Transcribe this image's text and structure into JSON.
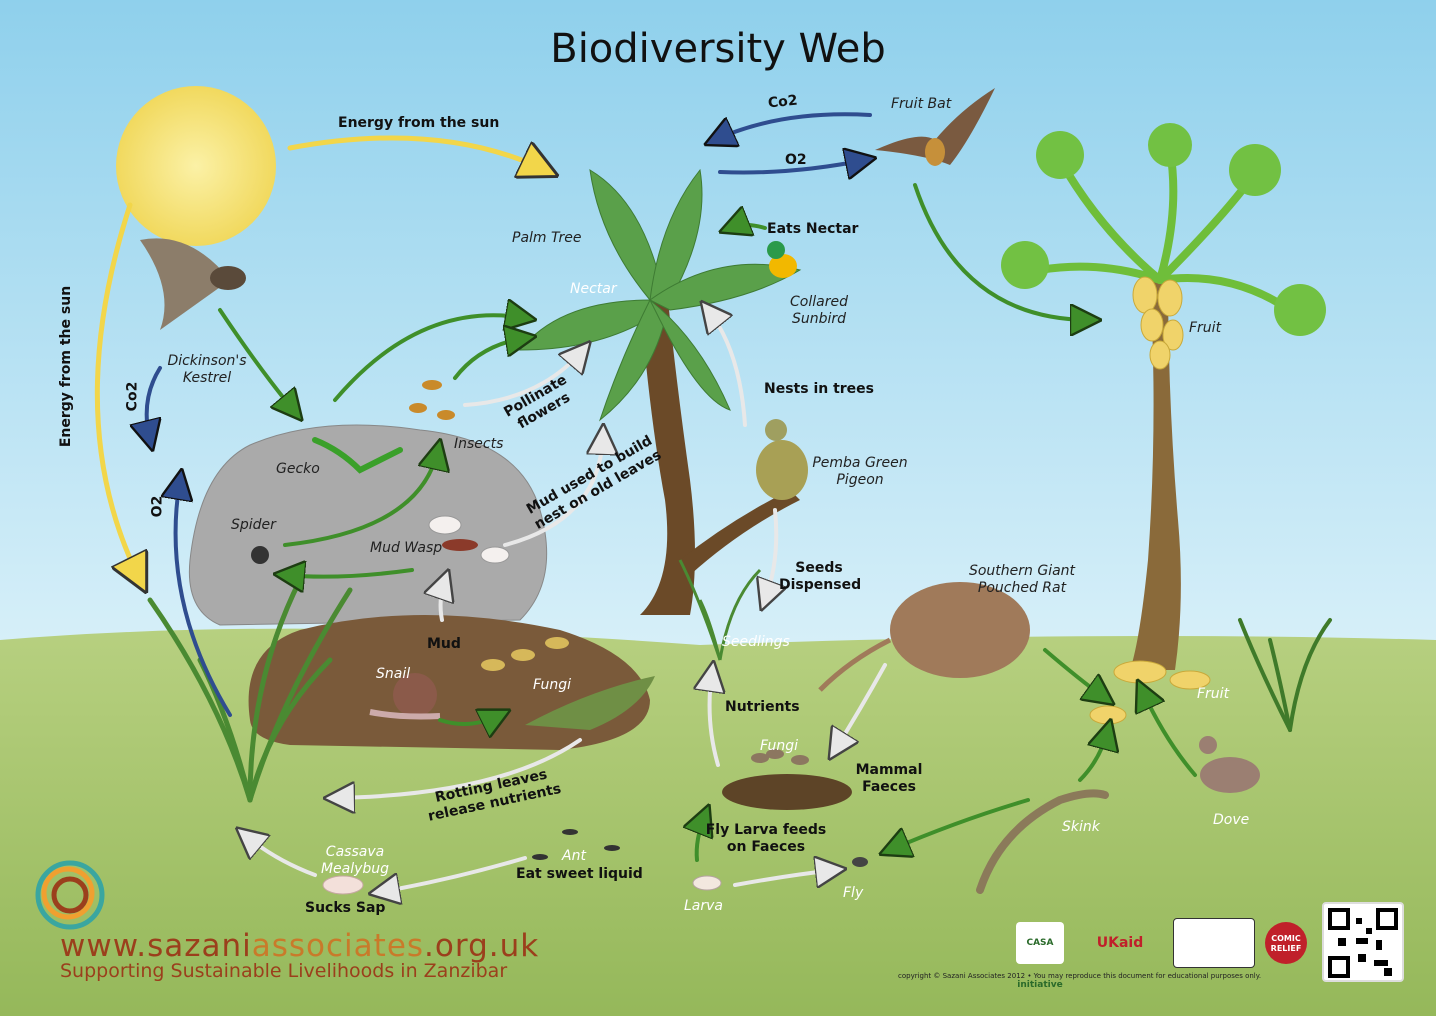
{
  "title": "Biodiversity Web",
  "labels": {
    "energy_sun_top": "Energy from the sun",
    "energy_sun_left": "Energy from the sun",
    "co2_left": "Co2",
    "o2_left": "O2",
    "co2_bat": "Co2",
    "o2_bat": "O2",
    "fruit_bat": "Fruit Bat",
    "palm_tree": "Palm Tree",
    "nectar": "Nectar",
    "eats_nectar": "Eats Nectar",
    "collared_sunbird": "Collared Sunbird",
    "dickinsons_kestrel": "Dickinson's Kestrel",
    "gecko": "Gecko",
    "insects": "Insects",
    "pollinate_flowers": "Pollinate flowers",
    "mud_used": "Mud used to build nest on old leaves",
    "nests_in_trees": "Nests in trees",
    "pemba_green_pigeon": "Pemba Green Pigeon",
    "fruit_top": "Fruit",
    "spider": "Spider",
    "mud_wasp": "Mud Wasp",
    "seeds_dispensed": "Seeds Dispensed",
    "southern_giant_pouched_rat": "Southern Giant Pouched Rat",
    "mud": "Mud",
    "seedlings": "Seedlings",
    "snail": "Snail",
    "fungi_mound": "Fungi",
    "nutrients": "Nutrients",
    "fruit_ground": "Fruit",
    "fungi_faeces": "Fungi",
    "mammal_faeces": "Mammal Faeces",
    "rotting_leaves": "Rotting leaves release nutrients",
    "skink": "Skink",
    "dove": "Dove",
    "fly_larva": "Fly Larva feeds on Faeces",
    "cassava_mealybug": "Cassava Mealybug",
    "ant": "Ant",
    "eat_sweet_liquid": "Eat sweet liquid",
    "sucks_sap": "Sucks Sap",
    "larva": "Larva",
    "fly": "Fly"
  },
  "footer": {
    "website_prefix": "www.sazani",
    "website_highlight": "associates",
    "website_suffix": ".org.uk",
    "tagline": "Supporting Sustainable Livelihoods in Zanzibar",
    "copyright": "copyright © Sazani Associates 2012 • You may reproduce this document for educational purposes only.",
    "logos": [
      "CASA initiative",
      "UKaid",
      "crest",
      "COMIC RELIEF",
      "qr-code"
    ]
  },
  "colors": {
    "sky_top": "#8fd0ec",
    "sky_bottom": "#d4eef8",
    "grass": "#a9c66a",
    "sun": "#f4e27a",
    "arrow_green": "#3f8f2a",
    "arrow_yellow": "#f2d64a",
    "arrow_blue": "#2f4d8f",
    "arrow_grey": "#bdbdbd",
    "soil": "#7a5a3a",
    "rock": "#a9a9a9",
    "brand": "#9b3f1c"
  }
}
